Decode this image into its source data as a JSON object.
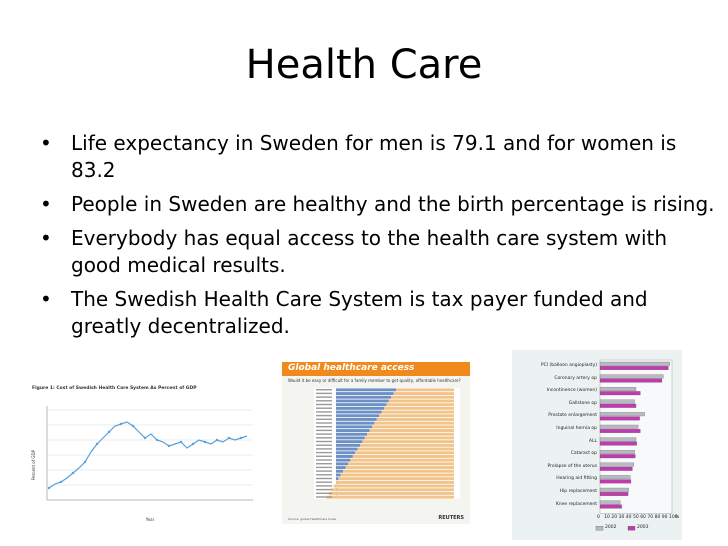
{
  "slide": {
    "title": "Health Care",
    "bullet_symbol": "•",
    "bullets": [
      "Life expectancy in Sweden for men is 79.1 and for women is 83.2",
      "People in Sweden are healthy and the birth percentage is rising.",
      "Everybody has equal access to the health care system with good medical results.",
      "The Swedish Health Care System is tax payer funded and greatly decentralized."
    ]
  },
  "figure1": {
    "caption": "Figure 1: Cost of Swedish Health Care System As Percent of GDP",
    "ylabel": "Percent of GDP",
    "xlabel": "Year",
    "line_color": "#5aa0d8"
  },
  "figure2": {
    "title": "Global healthcare access",
    "subtitle": "Would it be easy or difficult for a family member to get quality, affordable healthcare?",
    "brand": "REUTERS",
    "source": "Source: global HealthCare Index",
    "accent": "#f08a1c",
    "bar_color": "#f2c48a",
    "bar2_color": "#6c8fc4"
  },
  "chart_data": {
    "type": "bar",
    "categories": [
      "PCI (balloon angioplasty)",
      "Coronary artery op",
      "Incontinence (women)",
      "Gallstone op",
      "Prostate enlargement",
      "Inguinal hernia op",
      "ALL",
      "Cataract op",
      "Prolapse of the uterus",
      "Hearing aid fitting",
      "Hip replacement",
      "Knee replacement"
    ],
    "series": [
      {
        "name": "2002",
        "values": [
          97,
          88,
          50,
          48,
          62,
          53,
          50,
          48,
          47,
          42,
          40,
          28
        ]
      },
      {
        "name": "2003",
        "values": [
          95,
          86,
          56,
          50,
          55,
          56,
          51,
          49,
          45,
          43,
          39,
          30
        ]
      }
    ],
    "x_ticks": [
      "0",
      "10",
      "20",
      "30",
      "40",
      "50",
      "60",
      "70",
      "80",
      "90",
      "100"
    ],
    "x_unit": "%",
    "xlim": [
      0,
      100
    ],
    "colors": {
      "2002": "#b9b9c3",
      "2003": "#c13ab0"
    },
    "legend_placement": "bottom"
  }
}
